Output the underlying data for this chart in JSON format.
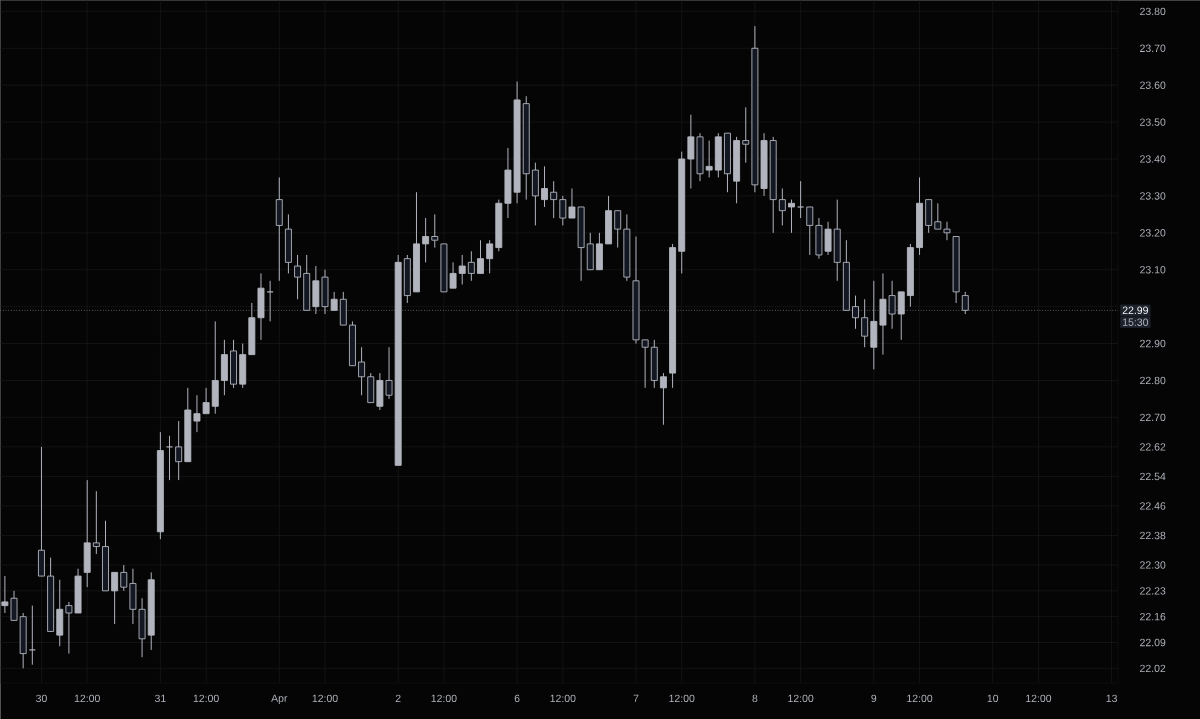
{
  "chart_data": {
    "type": "candlestick",
    "color": "#b2b5be",
    "categories": [
      null,
      null,
      null,
      null,
      "30",
      null,
      null,
      null,
      null,
      "12:00",
      null,
      null,
      null,
      null,
      null,
      null,
      null,
      "31",
      null,
      null,
      null,
      null,
      "12:00",
      null,
      null,
      null,
      null,
      null,
      null,
      null,
      "Apr",
      null,
      null,
      null,
      null,
      "12:00",
      null,
      null,
      null,
      null,
      null,
      null,
      null,
      "2",
      null,
      null,
      null,
      null,
      "12:00",
      null,
      null,
      null,
      null,
      null,
      null,
      null,
      "6",
      null,
      null,
      null,
      null,
      "12:00",
      null,
      null,
      null,
      null,
      null,
      null,
      null,
      "7",
      null,
      null,
      null,
      null,
      "12:00",
      null,
      null,
      null,
      null,
      null,
      null,
      null,
      "8",
      null,
      null,
      null,
      null,
      "12:00",
      null,
      null,
      null,
      null,
      null,
      null,
      null,
      "9",
      null,
      null,
      null,
      null,
      "12:00",
      null,
      null,
      null,
      null,
      null,
      null,
      null,
      "10",
      null,
      null,
      null,
      null,
      "12:00",
      null,
      null,
      null,
      null,
      null,
      null,
      null,
      "13"
    ],
    "ohlc": [
      [
        22.19,
        22.27,
        22.17,
        22.2
      ],
      [
        22.21,
        22.23,
        22.15,
        22.15
      ],
      [
        22.16,
        22.17,
        22.02,
        22.06
      ],
      [
        22.07,
        22.19,
        22.03,
        22.07
      ],
      [
        22.34,
        22.62,
        22.27,
        22.27
      ],
      [
        22.27,
        22.32,
        22.12,
        22.12
      ],
      [
        22.11,
        22.26,
        22.08,
        22.18
      ],
      [
        22.19,
        22.2,
        22.06,
        22.17
      ],
      [
        22.17,
        22.29,
        22.17,
        22.27
      ],
      [
        22.28,
        22.53,
        22.24,
        22.36
      ],
      [
        22.36,
        22.5,
        22.33,
        22.35
      ],
      [
        22.35,
        22.42,
        22.23,
        22.23
      ],
      [
        22.23,
        22.28,
        22.14,
        22.28
      ],
      [
        22.28,
        22.3,
        22.23,
        22.24
      ],
      [
        22.25,
        22.29,
        22.14,
        22.18
      ],
      [
        22.18,
        22.21,
        22.05,
        22.1
      ],
      [
        22.11,
        22.28,
        22.07,
        22.26
      ],
      [
        22.39,
        22.66,
        22.37,
        22.61
      ],
      [
        22.62,
        22.65,
        22.53,
        22.62
      ],
      [
        22.62,
        22.69,
        22.53,
        22.58
      ],
      [
        22.58,
        22.78,
        22.58,
        22.72
      ],
      [
        22.69,
        22.76,
        22.66,
        22.71
      ],
      [
        22.71,
        22.78,
        22.71,
        22.74
      ],
      [
        22.73,
        22.96,
        22.71,
        22.8
      ],
      [
        22.8,
        22.91,
        22.76,
        22.87
      ],
      [
        22.88,
        22.91,
        22.78,
        22.79
      ],
      [
        22.79,
        22.9,
        22.78,
        22.87
      ],
      [
        22.87,
        23.01,
        22.87,
        22.97
      ],
      [
        22.97,
        23.09,
        22.91,
        23.05
      ],
      [
        23.04,
        23.07,
        22.96,
        23.04
      ],
      [
        23.29,
        23.35,
        23.07,
        23.22
      ],
      [
        23.21,
        23.25,
        23.09,
        23.12
      ],
      [
        23.11,
        23.14,
        23.02,
        23.08
      ],
      [
        23.09,
        23.14,
        22.99,
        22.99
      ],
      [
        23.0,
        23.11,
        22.98,
        23.07
      ],
      [
        23.08,
        23.1,
        22.98,
        23.0
      ],
      [
        22.99,
        23.04,
        22.99,
        23.02
      ],
      [
        23.02,
        23.04,
        22.95,
        22.95
      ],
      [
        22.95,
        22.96,
        22.84,
        22.84
      ],
      [
        22.85,
        22.89,
        22.76,
        22.81
      ],
      [
        22.81,
        22.82,
        22.74,
        22.74
      ],
      [
        22.73,
        22.82,
        22.72,
        22.8
      ],
      [
        22.8,
        22.89,
        22.75,
        22.76
      ],
      [
        22.57,
        23.14,
        22.57,
        23.12
      ],
      [
        23.13,
        23.14,
        23.01,
        23.03
      ],
      [
        23.04,
        23.31,
        23.04,
        23.17
      ],
      [
        23.17,
        23.24,
        23.12,
        23.19
      ],
      [
        23.19,
        23.25,
        23.16,
        23.18
      ],
      [
        23.17,
        23.17,
        23.04,
        23.04
      ],
      [
        23.05,
        23.12,
        23.05,
        23.09
      ],
      [
        23.09,
        23.14,
        23.06,
        23.11
      ],
      [
        23.12,
        23.15,
        23.07,
        23.09
      ],
      [
        23.09,
        23.18,
        23.09,
        23.13
      ],
      [
        23.13,
        23.18,
        23.09,
        23.17
      ],
      [
        23.16,
        23.29,
        23.15,
        23.28
      ],
      [
        23.28,
        23.43,
        23.24,
        23.37
      ],
      [
        23.31,
        23.61,
        23.28,
        23.56
      ],
      [
        23.55,
        23.57,
        23.29,
        23.36
      ],
      [
        23.37,
        23.39,
        23.22,
        23.3
      ],
      [
        23.29,
        23.38,
        23.27,
        23.32
      ],
      [
        23.31,
        23.34,
        23.24,
        23.29
      ],
      [
        23.29,
        23.3,
        23.22,
        23.24
      ],
      [
        23.24,
        23.32,
        23.24,
        23.27
      ],
      [
        23.27,
        23.27,
        23.07,
        23.16
      ],
      [
        23.17,
        23.2,
        23.1,
        23.1
      ],
      [
        23.1,
        23.2,
        23.1,
        23.17
      ],
      [
        23.17,
        23.3,
        23.17,
        23.26
      ],
      [
        23.26,
        23.26,
        23.16,
        23.21
      ],
      [
        23.21,
        23.25,
        23.07,
        23.08
      ],
      [
        23.07,
        23.19,
        22.9,
        22.91
      ],
      [
        22.91,
        22.91,
        22.78,
        22.89
      ],
      [
        22.89,
        22.91,
        22.78,
        22.8
      ],
      [
        22.78,
        22.82,
        22.68,
        22.81
      ],
      [
        22.82,
        23.17,
        22.78,
        23.16
      ],
      [
        23.15,
        23.42,
        23.09,
        23.4
      ],
      [
        23.4,
        23.52,
        23.32,
        23.46
      ],
      [
        23.46,
        23.47,
        23.34,
        23.36
      ],
      [
        23.37,
        23.45,
        23.35,
        23.38
      ],
      [
        23.37,
        23.47,
        23.35,
        23.46
      ],
      [
        23.47,
        23.47,
        23.31,
        23.36
      ],
      [
        23.34,
        23.46,
        23.28,
        23.45
      ],
      [
        23.45,
        23.54,
        23.39,
        23.44
      ],
      [
        23.7,
        23.76,
        23.31,
        23.33
      ],
      [
        23.32,
        23.47,
        23.3,
        23.45
      ],
      [
        23.45,
        23.46,
        23.2,
        23.29
      ],
      [
        23.29,
        23.32,
        23.22,
        23.26
      ],
      [
        23.27,
        23.29,
        23.2,
        23.28
      ],
      [
        23.27,
        23.34,
        23.24,
        23.27
      ],
      [
        23.27,
        23.27,
        23.14,
        23.22
      ],
      [
        23.22,
        23.24,
        23.13,
        23.14
      ],
      [
        23.15,
        23.23,
        23.14,
        23.21
      ],
      [
        23.21,
        23.29,
        23.07,
        23.12
      ],
      [
        23.12,
        23.18,
        22.99,
        22.99
      ],
      [
        23.0,
        23.03,
        22.94,
        22.97
      ],
      [
        22.97,
        23.02,
        22.89,
        22.92
      ],
      [
        22.89,
        23.07,
        22.83,
        22.96
      ],
      [
        22.95,
        23.09,
        22.87,
        23.02
      ],
      [
        23.03,
        23.07,
        22.94,
        22.98
      ],
      [
        22.98,
        23.04,
        22.91,
        23.04
      ],
      [
        23.03,
        23.17,
        23.0,
        23.16
      ],
      [
        23.16,
        23.35,
        23.14,
        23.28
      ],
      [
        23.29,
        23.29,
        23.2,
        23.22
      ],
      [
        23.23,
        23.28,
        23.21,
        23.21
      ],
      [
        23.21,
        23.23,
        23.18,
        23.2
      ],
      [
        23.19,
        23.19,
        23.01,
        23.04
      ],
      [
        23.03,
        23.04,
        22.98,
        22.99
      ],
      null,
      null,
      null,
      null,
      null,
      null,
      null,
      null,
      null,
      null,
      null,
      null,
      null,
      null,
      null,
      null
    ],
    "ylim": [
      21.98,
      23.83
    ],
    "yticks": [
      {
        "value": 22.02,
        "label": "22.02"
      },
      {
        "value": 22.09,
        "label": "22.09"
      },
      {
        "value": 22.16,
        "label": "22.16"
      },
      {
        "value": 22.23,
        "label": "22.23"
      },
      {
        "value": 22.3,
        "label": "22.30"
      },
      {
        "value": 22.38,
        "label": "22.38"
      },
      {
        "value": 22.46,
        "label": "22.46"
      },
      {
        "value": 22.54,
        "label": "22.54"
      },
      {
        "value": 22.62,
        "label": "22.62"
      },
      {
        "value": 22.7,
        "label": "22.70"
      },
      {
        "value": 22.8,
        "label": "22.80"
      },
      {
        "value": 22.9,
        "label": "22.90"
      },
      {
        "value": 23.0,
        "label": null
      },
      {
        "value": 23.1,
        "label": "23.10"
      },
      {
        "value": 23.2,
        "label": "23.20"
      },
      {
        "value": 23.3,
        "label": "23.30"
      },
      {
        "value": 23.4,
        "label": "23.40"
      },
      {
        "value": 23.5,
        "label": "23.50"
      },
      {
        "value": 23.6,
        "label": "23.60"
      },
      {
        "value": 23.7,
        "label": "23.70"
      },
      {
        "value": 23.8,
        "label": "23.80"
      }
    ],
    "grid": true,
    "ref_lines": [
      {
        "axis": "y",
        "value": 22.99,
        "label": "22.99",
        "line_style": "dotted"
      }
    ],
    "annotations": [
      "15:30"
    ]
  }
}
